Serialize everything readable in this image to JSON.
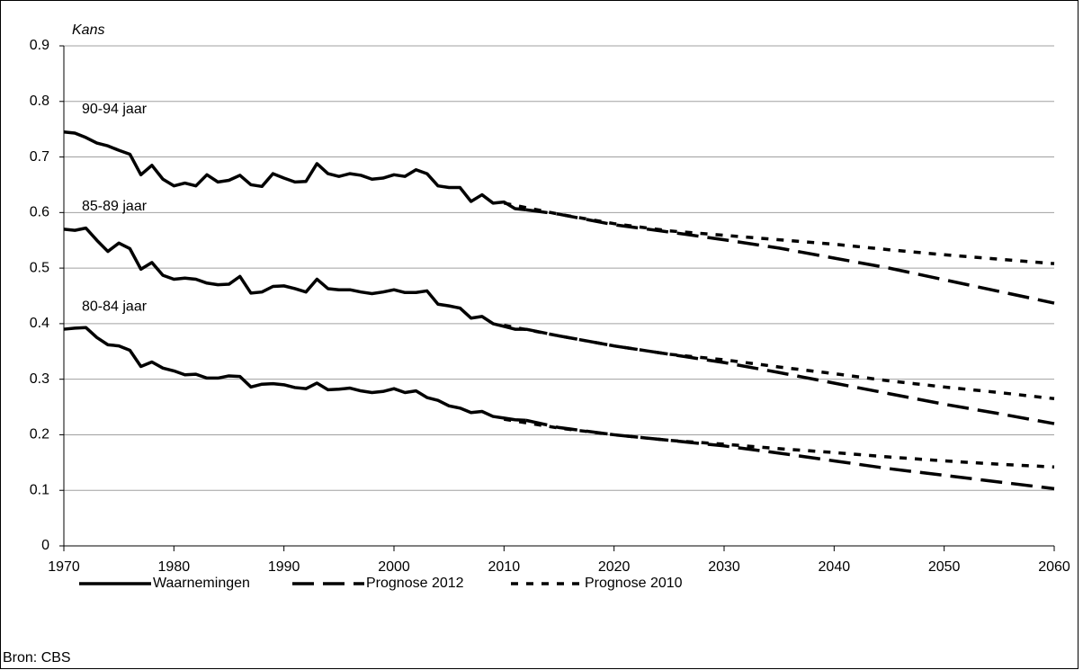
{
  "chart_data": {
    "type": "line",
    "y_label": "Kans",
    "source": "Bron: CBS",
    "xlim": [
      1970,
      2060
    ],
    "xticks": [
      1970,
      1980,
      1990,
      2000,
      2010,
      2020,
      2030,
      2040,
      2050,
      2060
    ],
    "ylim": [
      0,
      0.9
    ],
    "yticks": [
      0,
      0.1,
      0.2,
      0.3,
      0.4,
      0.5,
      0.6,
      0.7,
      0.8,
      0.9
    ],
    "grid": true,
    "groups": [
      "90-94 jaar",
      "85-89 jaar",
      "80-84 jaar"
    ],
    "series": [
      {
        "name": "Waarnemingen",
        "color": "#000000",
        "dash": "solid",
        "x": [
          1970,
          1971,
          1972,
          1973,
          1974,
          1975,
          1976,
          1977,
          1978,
          1979,
          1980,
          1981,
          1982,
          1983,
          1984,
          1985,
          1986,
          1987,
          1988,
          1989,
          1990,
          1991,
          1992,
          1993,
          1994,
          1995,
          1996,
          1997,
          1998,
          1999,
          2000,
          2001,
          2002,
          2003,
          2004,
          2005,
          2006,
          2007,
          2008,
          2009,
          2010,
          2011,
          2012
        ],
        "groups": [
          {
            "values": [
              0.745,
              0.743,
              0.735,
              0.725,
              0.72,
              0.712,
              0.705,
              0.668,
              0.685,
              0.66,
              0.648,
              0.653,
              0.648,
              0.668,
              0.655,
              0.658,
              0.667,
              0.65,
              0.647,
              0.67,
              0.662,
              0.655,
              0.656,
              0.688,
              0.67,
              0.665,
              0.67,
              0.667,
              0.66,
              0.662,
              0.668,
              0.665,
              0.677,
              0.67,
              0.648,
              0.645,
              0.645,
              0.62,
              0.632,
              0.617,
              0.619,
              0.607,
              0.605
            ]
          },
          {
            "values": [
              0.57,
              0.568,
              0.572,
              0.55,
              0.53,
              0.545,
              0.535,
              0.498,
              0.51,
              0.487,
              0.48,
              0.482,
              0.48,
              0.473,
              0.47,
              0.471,
              0.485,
              0.455,
              0.457,
              0.467,
              0.468,
              0.463,
              0.457,
              0.48,
              0.463,
              0.461,
              0.461,
              0.457,
              0.454,
              0.457,
              0.461,
              0.456,
              0.456,
              0.459,
              0.435,
              0.432,
              0.428,
              0.41,
              0.413,
              0.4,
              0.395,
              0.39,
              0.39
            ]
          },
          {
            "values": [
              0.39,
              0.392,
              0.393,
              0.375,
              0.362,
              0.36,
              0.352,
              0.323,
              0.331,
              0.32,
              0.315,
              0.308,
              0.309,
              0.302,
              0.302,
              0.306,
              0.305,
              0.286,
              0.291,
              0.292,
              0.29,
              0.285,
              0.283,
              0.293,
              0.281,
              0.282,
              0.284,
              0.279,
              0.276,
              0.278,
              0.283,
              0.276,
              0.279,
              0.267,
              0.262,
              0.252,
              0.248,
              0.24,
              0.242,
              0.233,
              0.23,
              0.227,
              0.226
            ]
          }
        ]
      },
      {
        "name": "Prognose 2012",
        "color": "#000000",
        "dash": "long",
        "x": [
          2012,
          2015,
          2020,
          2025,
          2030,
          2035,
          2040,
          2045,
          2050,
          2055,
          2060
        ],
        "groups": [
          {
            "values": [
              0.605,
              0.597,
              0.578,
              0.565,
              0.551,
              0.536,
              0.518,
              0.5,
              0.479,
              0.458,
              0.437
            ]
          },
          {
            "values": [
              0.39,
              0.378,
              0.36,
              0.345,
              0.33,
              0.312,
              0.293,
              0.274,
              0.255,
              0.238,
              0.22
            ]
          },
          {
            "values": [
              0.226,
              0.213,
              0.2,
              0.19,
              0.18,
              0.167,
              0.153,
              0.139,
              0.127,
              0.115,
              0.103
            ]
          }
        ]
      },
      {
        "name": "Prognose 2010",
        "color": "#000000",
        "dash": "short",
        "x": [
          2010,
          2015,
          2020,
          2025,
          2030,
          2035,
          2040,
          2045,
          2050,
          2055,
          2060
        ],
        "groups": [
          {
            "values": [
              0.617,
              0.597,
              0.58,
              0.567,
              0.559,
              0.551,
              0.543,
              0.533,
              0.524,
              0.516,
              0.508
            ]
          },
          {
            "values": [
              0.397,
              0.378,
              0.36,
              0.345,
              0.335,
              0.322,
              0.31,
              0.297,
              0.286,
              0.276,
              0.265
            ]
          },
          {
            "values": [
              0.228,
              0.212,
              0.2,
              0.19,
              0.183,
              0.175,
              0.168,
              0.16,
              0.153,
              0.147,
              0.142
            ]
          }
        ]
      }
    ]
  }
}
